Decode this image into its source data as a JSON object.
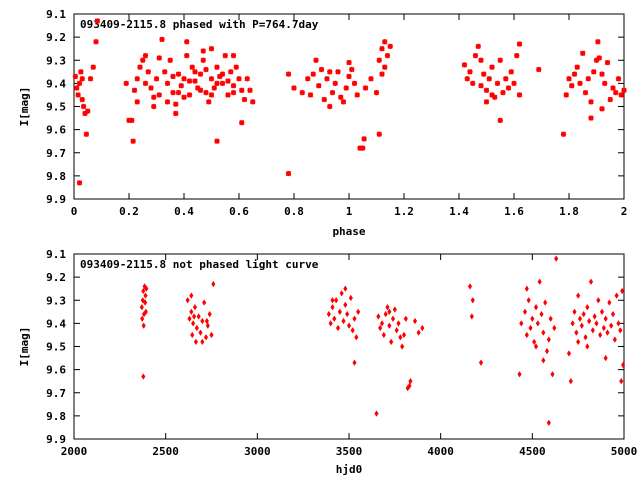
{
  "chart_data": [
    {
      "type": "scatter",
      "title": "093409-2115.8 phased with P=764.7day",
      "xlabel": "phase",
      "ylabel": "I[mag]",
      "xlim": [
        0,
        2
      ],
      "ylim": [
        9.9,
        9.1
      ],
      "y_inverted": true,
      "marker_color": "#ff0000",
      "marker": "asterisk",
      "x_ticks": [
        "0",
        "0.2",
        "0.4",
        "0.6",
        "0.8",
        "1",
        "1.2",
        "1.4",
        "1.6",
        "1.8",
        "2"
      ],
      "x_tick_values": [
        0,
        0.2,
        0.4,
        0.6,
        0.8,
        1.0,
        1.2,
        1.4,
        1.6,
        1.8,
        2.0
      ],
      "y_ticks": [
        "9.1",
        "9.2",
        "9.3",
        "9.4",
        "9.5",
        "9.6",
        "9.7",
        "9.8",
        "9.9"
      ],
      "y_tick_values": [
        9.1,
        9.2,
        9.3,
        9.4,
        9.5,
        9.6,
        9.7,
        9.8,
        9.9
      ],
      "points": [
        [
          0.005,
          9.37
        ],
        [
          0.01,
          9.42
        ],
        [
          0.015,
          9.45
        ],
        [
          0.02,
          9.4
        ],
        [
          0.025,
          9.35
        ],
        [
          0.03,
          9.47
        ],
        [
          0.035,
          9.5
        ],
        [
          0.04,
          9.53
        ],
        [
          0.045,
          9.62
        ],
        [
          0.05,
          9.52
        ],
        [
          0.06,
          9.38
        ],
        [
          0.07,
          9.33
        ],
        [
          0.08,
          9.22
        ],
        [
          0.085,
          9.13
        ],
        [
          0.02,
          9.83
        ],
        [
          0.03,
          9.38
        ],
        [
          0.19,
          9.4
        ],
        [
          0.2,
          9.56
        ],
        [
          0.21,
          9.56
        ],
        [
          0.215,
          9.65
        ],
        [
          0.22,
          9.43
        ],
        [
          0.23,
          9.38
        ],
        [
          0.24,
          9.33
        ],
        [
          0.25,
          9.3
        ],
        [
          0.26,
          9.28
        ],
        [
          0.27,
          9.35
        ],
        [
          0.28,
          9.42
        ],
        [
          0.29,
          9.46
        ],
        [
          0.3,
          9.38
        ],
        [
          0.31,
          9.29
        ],
        [
          0.32,
          9.21
        ],
        [
          0.33,
          9.35
        ],
        [
          0.34,
          9.4
        ],
        [
          0.35,
          9.3
        ],
        [
          0.36,
          9.44
        ],
        [
          0.37,
          9.49
        ],
        [
          0.38,
          9.36
        ],
        [
          0.39,
          9.41
        ],
        [
          0.4,
          9.38
        ],
        [
          0.41,
          9.28
        ],
        [
          0.42,
          9.45
        ],
        [
          0.43,
          9.33
        ],
        [
          0.44,
          9.39
        ],
        [
          0.45,
          9.42
        ],
        [
          0.46,
          9.36
        ],
        [
          0.47,
          9.3
        ],
        [
          0.48,
          9.44
        ],
        [
          0.49,
          9.48
        ],
        [
          0.5,
          9.38
        ],
        [
          0.51,
          9.42
        ],
        [
          0.52,
          9.33
        ],
        [
          0.53,
          9.37
        ],
        [
          0.54,
          9.4
        ],
        [
          0.55,
          9.28
        ],
        [
          0.56,
          9.45
        ],
        [
          0.57,
          9.35
        ],
        [
          0.58,
          9.41
        ],
        [
          0.59,
          9.33
        ],
        [
          0.6,
          9.38
        ],
        [
          0.61,
          9.43
        ],
        [
          0.62,
          9.47
        ],
        [
          0.63,
          9.38
        ],
        [
          0.64,
          9.43
        ],
        [
          0.65,
          9.48
        ],
        [
          0.26,
          9.4
        ],
        [
          0.31,
          9.45
        ],
        [
          0.34,
          9.48
        ],
        [
          0.36,
          9.37
        ],
        [
          0.38,
          9.44
        ],
        [
          0.4,
          9.46
        ],
        [
          0.42,
          9.39
        ],
        [
          0.44,
          9.35
        ],
        [
          0.46,
          9.43
        ],
        [
          0.48,
          9.34
        ],
        [
          0.5,
          9.45
        ],
        [
          0.52,
          9.4
        ],
        [
          0.54,
          9.36
        ],
        [
          0.56,
          9.39
        ],
        [
          0.58,
          9.44
        ],
        [
          0.41,
          9.22
        ],
        [
          0.47,
          9.26
        ],
        [
          0.5,
          9.25
        ],
        [
          0.58,
          9.28
        ],
        [
          0.61,
          9.57
        ],
        [
          0.37,
          9.53
        ],
        [
          0.52,
          9.65
        ],
        [
          0.29,
          9.5
        ],
        [
          0.23,
          9.48
        ],
        [
          0.78,
          9.79
        ],
        [
          0.78,
          9.36
        ],
        [
          0.8,
          9.42
        ],
        [
          0.83,
          9.44
        ],
        [
          0.85,
          9.38
        ],
        [
          0.86,
          9.45
        ],
        [
          0.87,
          9.36
        ],
        [
          0.88,
          9.3
        ],
        [
          0.89,
          9.41
        ],
        [
          0.9,
          9.34
        ],
        [
          0.91,
          9.47
        ],
        [
          0.92,
          9.38
        ],
        [
          0.93,
          9.35
        ],
        [
          0.94,
          9.44
        ],
        [
          0.95,
          9.4
        ],
        [
          0.96,
          9.35
        ],
        [
          0.97,
          9.46
        ],
        [
          0.98,
          9.48
        ],
        [
          0.99,
          9.42
        ],
        [
          1.0,
          9.37
        ],
        [
          1.01,
          9.34
        ],
        [
          1.02,
          9.4
        ],
        [
          1.03,
          9.45
        ],
        [
          1.04,
          9.68
        ],
        [
          1.05,
          9.68
        ],
        [
          1.055,
          9.64
        ],
        [
          1.06,
          9.42
        ],
        [
          1.08,
          9.38
        ],
        [
          1.1,
          9.44
        ],
        [
          1.11,
          9.3
        ],
        [
          1.12,
          9.25
        ],
        [
          1.13,
          9.33
        ],
        [
          1.14,
          9.28
        ],
        [
          1.12,
          9.36
        ],
        [
          1.13,
          9.22
        ],
        [
          1.15,
          9.24
        ],
        [
          1.11,
          9.62
        ],
        [
          1.0,
          9.31
        ],
        [
          0.93,
          9.5
        ],
        [
          1.42,
          9.32
        ],
        [
          1.43,
          9.38
        ],
        [
          1.44,
          9.35
        ],
        [
          1.45,
          9.4
        ],
        [
          1.46,
          9.28
        ],
        [
          1.47,
          9.24
        ],
        [
          1.48,
          9.41
        ],
        [
          1.49,
          9.36
        ],
        [
          1.5,
          9.43
        ],
        [
          1.51,
          9.38
        ],
        [
          1.52,
          9.33
        ],
        [
          1.53,
          9.46
        ],
        [
          1.54,
          9.4
        ],
        [
          1.55,
          9.3
        ],
        [
          1.56,
          9.44
        ],
        [
          1.57,
          9.38
        ],
        [
          1.58,
          9.42
        ],
        [
          1.59,
          9.35
        ],
        [
          1.6,
          9.4
        ],
        [
          1.61,
          9.28
        ],
        [
          1.62,
          9.23
        ],
        [
          1.55,
          9.56
        ],
        [
          1.5,
          9.48
        ],
        [
          1.52,
          9.45
        ],
        [
          1.48,
          9.3
        ],
        [
          1.62,
          9.45
        ],
        [
          1.69,
          9.34
        ],
        [
          1.78,
          9.62
        ],
        [
          1.79,
          9.45
        ],
        [
          1.8,
          9.38
        ],
        [
          1.81,
          9.41
        ],
        [
          1.82,
          9.36
        ],
        [
          1.83,
          9.33
        ],
        [
          1.84,
          9.4
        ],
        [
          1.85,
          9.27
        ],
        [
          1.86,
          9.44
        ],
        [
          1.87,
          9.38
        ],
        [
          1.88,
          9.48
        ],
        [
          1.89,
          9.35
        ],
        [
          1.9,
          9.3
        ],
        [
          1.905,
          9.22
        ],
        [
          1.91,
          9.29
        ],
        [
          1.92,
          9.36
        ],
        [
          1.93,
          9.4
        ],
        [
          1.94,
          9.31
        ],
        [
          1.95,
          9.47
        ],
        [
          1.96,
          9.42
        ],
        [
          1.97,
          9.44
        ],
        [
          1.98,
          9.38
        ],
        [
          1.99,
          9.45
        ],
        [
          2.0,
          9.43
        ],
        [
          1.92,
          9.51
        ],
        [
          1.88,
          9.55
        ]
      ]
    },
    {
      "type": "scatter",
      "title": "093409-2115.8 not phased light curve",
      "xlabel": "hjd0",
      "ylabel": "I[mag]",
      "xlim": [
        2000,
        5000
      ],
      "ylim": [
        9.9,
        9.1
      ],
      "y_inverted": true,
      "marker_color": "#ff0000",
      "marker": "diamond",
      "x_ticks": [
        "2000",
        "2500",
        "3000",
        "3500",
        "4000",
        "4500",
        "5000"
      ],
      "x_tick_values": [
        2000,
        2500,
        3000,
        3500,
        4000,
        4500,
        5000
      ],
      "y_ticks": [
        "9.1",
        "9.2",
        "9.3",
        "9.4",
        "9.5",
        "9.6",
        "9.7",
        "9.8",
        "9.9"
      ],
      "y_tick_values": [
        9.1,
        9.2,
        9.3,
        9.4,
        9.5,
        9.6,
        9.7,
        9.8,
        9.9
      ],
      "points": [
        [
          2370,
          9.33
        ],
        [
          2372,
          9.38
        ],
        [
          2375,
          9.3
        ],
        [
          2378,
          9.26
        ],
        [
          2380,
          9.41
        ],
        [
          2382,
          9.36
        ],
        [
          2385,
          9.24
        ],
        [
          2388,
          9.31
        ],
        [
          2390,
          9.28
        ],
        [
          2392,
          9.35
        ],
        [
          2395,
          9.25
        ],
        [
          2378,
          9.63
        ],
        [
          2620,
          9.3
        ],
        [
          2630,
          9.38
        ],
        [
          2640,
          9.35
        ],
        [
          2645,
          9.45
        ],
        [
          2650,
          9.4
        ],
        [
          2660,
          9.33
        ],
        [
          2665,
          9.48
        ],
        [
          2670,
          9.42
        ],
        [
          2680,
          9.37
        ],
        [
          2690,
          9.44
        ],
        [
          2700,
          9.39
        ],
        [
          2710,
          9.31
        ],
        [
          2720,
          9.46
        ],
        [
          2730,
          9.41
        ],
        [
          2740,
          9.36
        ],
        [
          2750,
          9.45
        ],
        [
          2760,
          9.23
        ],
        [
          2640,
          9.28
        ],
        [
          2700,
          9.48
        ],
        [
          2655,
          9.37
        ],
        [
          2725,
          9.39
        ],
        [
          3390,
          9.36
        ],
        [
          3400,
          9.4
        ],
        [
          3410,
          9.33
        ],
        [
          3420,
          9.38
        ],
        [
          3430,
          9.3
        ],
        [
          3440,
          9.42
        ],
        [
          3450,
          9.35
        ],
        [
          3460,
          9.27
        ],
        [
          3470,
          9.39
        ],
        [
          3480,
          9.32
        ],
        [
          3490,
          9.36
        ],
        [
          3500,
          9.41
        ],
        [
          3510,
          9.29
        ],
        [
          3520,
          9.43
        ],
        [
          3530,
          9.38
        ],
        [
          3540,
          9.46
        ],
        [
          3550,
          9.35
        ],
        [
          3530,
          9.57
        ],
        [
          3480,
          9.25
        ],
        [
          3410,
          9.3
        ],
        [
          3650,
          9.79
        ],
        [
          3660,
          9.37
        ],
        [
          3670,
          9.42
        ],
        [
          3680,
          9.4
        ],
        [
          3690,
          9.45
        ],
        [
          3700,
          9.36
        ],
        [
          3710,
          9.33
        ],
        [
          3720,
          9.41
        ],
        [
          3730,
          9.48
        ],
        [
          3740,
          9.38
        ],
        [
          3750,
          9.34
        ],
        [
          3760,
          9.43
        ],
        [
          3770,
          9.4
        ],
        [
          3780,
          9.46
        ],
        [
          3790,
          9.5
        ],
        [
          3800,
          9.45
        ],
        [
          3810,
          9.38
        ],
        [
          3820,
          9.68
        ],
        [
          3830,
          9.67
        ],
        [
          3835,
          9.65
        ],
        [
          3860,
          9.39
        ],
        [
          3880,
          9.44
        ],
        [
          3900,
          9.42
        ],
        [
          3720,
          9.35
        ],
        [
          4160,
          9.24
        ],
        [
          4170,
          9.37
        ],
        [
          4175,
          9.3
        ],
        [
          4220,
          9.57
        ],
        [
          4430,
          9.62
        ],
        [
          4440,
          9.4
        ],
        [
          4460,
          9.35
        ],
        [
          4470,
          9.45
        ],
        [
          4480,
          9.3
        ],
        [
          4490,
          9.42
        ],
        [
          4500,
          9.38
        ],
        [
          4510,
          9.48
        ],
        [
          4520,
          9.33
        ],
        [
          4530,
          9.4
        ],
        [
          4540,
          9.22
        ],
        [
          4550,
          9.36
        ],
        [
          4560,
          9.44
        ],
        [
          4570,
          9.31
        ],
        [
          4580,
          9.52
        ],
        [
          4590,
          9.47
        ],
        [
          4600,
          9.38
        ],
        [
          4610,
          9.62
        ],
        [
          4620,
          9.42
        ],
        [
          4630,
          9.12
        ],
        [
          4590,
          9.83
        ],
        [
          4520,
          9.5
        ],
        [
          4560,
          9.56
        ],
        [
          4470,
          9.25
        ],
        [
          4700,
          9.53
        ],
        [
          4710,
          9.65
        ],
        [
          4720,
          9.4
        ],
        [
          4730,
          9.35
        ],
        [
          4740,
          9.44
        ],
        [
          4750,
          9.28
        ],
        [
          4760,
          9.38
        ],
        [
          4770,
          9.41
        ],
        [
          4780,
          9.36
        ],
        [
          4790,
          9.46
        ],
        [
          4800,
          9.33
        ],
        [
          4810,
          9.39
        ],
        [
          4820,
          9.22
        ],
        [
          4830,
          9.43
        ],
        [
          4840,
          9.37
        ],
        [
          4850,
          9.4
        ],
        [
          4860,
          9.3
        ],
        [
          4870,
          9.45
        ],
        [
          4880,
          9.35
        ],
        [
          4890,
          9.42
        ],
        [
          4900,
          9.38
        ],
        [
          4910,
          9.44
        ],
        [
          4920,
          9.31
        ],
        [
          4930,
          9.41
        ],
        [
          4940,
          9.36
        ],
        [
          4950,
          9.47
        ],
        [
          4960,
          9.28
        ],
        [
          4970,
          9.4
        ],
        [
          4980,
          9.43
        ],
        [
          4990,
          9.26
        ],
        [
          4995,
          9.58
        ],
        [
          4985,
          9.65
        ],
        [
          4900,
          9.55
        ],
        [
          4800,
          9.5
        ],
        [
          4750,
          9.48
        ]
      ]
    }
  ]
}
